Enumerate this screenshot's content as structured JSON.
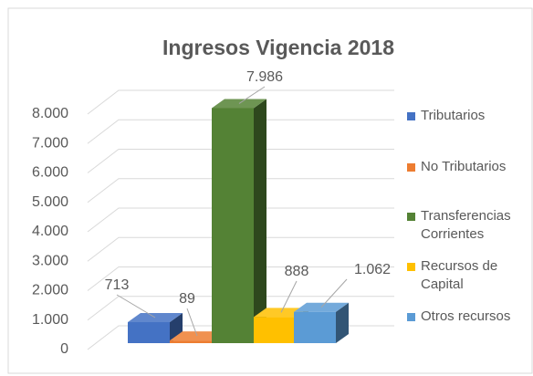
{
  "chart_data": {
    "type": "bar3d",
    "title": "Ingresos Vigencia 2018",
    "categories": [
      "Tributarios",
      "No Tributarios",
      "Transferencias Corrientes",
      "Recursos de Capital",
      "Otros recursos"
    ],
    "values": [
      713,
      89,
      7986,
      888,
      1062
    ],
    "value_labels": [
      "713",
      "89",
      "7.986",
      "888",
      "1.062"
    ],
    "colors": [
      "#4472c4",
      "#ed7d31",
      "#548235",
      "#ffc000",
      "#5b9bd5"
    ],
    "ylim": [
      0,
      8000
    ],
    "yticks": [
      0,
      {
        "value": 1000,
        "label": "1.000"
      },
      {
        "value": 2000,
        "label": "2.000"
      },
      {
        "value": 3000,
        "label": "3.000"
      },
      {
        "value": 4000,
        "label": "4.000"
      },
      {
        "value": 5000,
        "label": "5.000"
      },
      {
        "value": 6000,
        "label": "6.000"
      },
      {
        "value": 7000,
        "label": "7.000"
      },
      {
        "value": 8000,
        "label": "8.000"
      }
    ],
    "grid": true,
    "legend": "right"
  }
}
